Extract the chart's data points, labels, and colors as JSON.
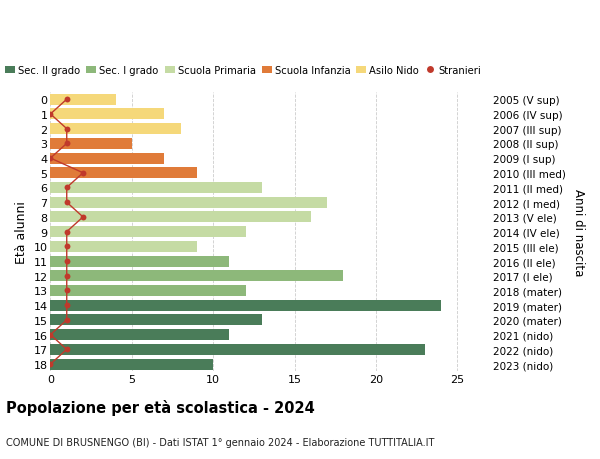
{
  "ages": [
    18,
    17,
    16,
    15,
    14,
    13,
    12,
    11,
    10,
    9,
    8,
    7,
    6,
    5,
    4,
    3,
    2,
    1,
    0
  ],
  "right_labels": [
    "2005 (V sup)",
    "2006 (IV sup)",
    "2007 (III sup)",
    "2008 (II sup)",
    "2009 (I sup)",
    "2010 (III med)",
    "2011 (II med)",
    "2012 (I med)",
    "2013 (V ele)",
    "2014 (IV ele)",
    "2015 (III ele)",
    "2016 (II ele)",
    "2017 (I ele)",
    "2018 (mater)",
    "2019 (mater)",
    "2020 (mater)",
    "2021 (nido)",
    "2022 (nido)",
    "2023 (nido)"
  ],
  "bar_values": [
    10,
    23,
    11,
    13,
    24,
    12,
    18,
    11,
    9,
    12,
    16,
    17,
    13,
    9,
    7,
    5,
    8,
    7,
    4
  ],
  "bar_colors": [
    "#4a7c59",
    "#4a7c59",
    "#4a7c59",
    "#4a7c59",
    "#4a7c59",
    "#8db87a",
    "#8db87a",
    "#8db87a",
    "#c5dba4",
    "#c5dba4",
    "#c5dba4",
    "#c5dba4",
    "#c5dba4",
    "#e07b39",
    "#e07b39",
    "#e07b39",
    "#f5d87a",
    "#f5d87a",
    "#f5d87a"
  ],
  "stranieri_x": [
    0,
    1,
    0,
    1,
    1,
    1,
    1,
    1,
    1,
    1,
    2,
    1,
    1,
    2,
    0,
    1,
    1,
    0,
    1
  ],
  "legend_labels": [
    "Sec. II grado",
    "Sec. I grado",
    "Scuola Primaria",
    "Scuola Infanzia",
    "Asilo Nido",
    "Stranieri"
  ],
  "legend_colors": [
    "#4a7c59",
    "#8db87a",
    "#c5dba4",
    "#e07b39",
    "#f5d87a",
    "#c0392b"
  ],
  "ylabel_left": "Età alunni",
  "ylabel_right": "Anni di nascita",
  "title": "Popolazione per età scolastica - 2024",
  "subtitle": "COMUNE DI BRUSNENGO (BI) - Dati ISTAT 1° gennaio 2024 - Elaborazione TUTTITALIA.IT",
  "xlim": [
    0,
    27
  ],
  "background_color": "#ffffff",
  "grid_color": "#cccccc"
}
